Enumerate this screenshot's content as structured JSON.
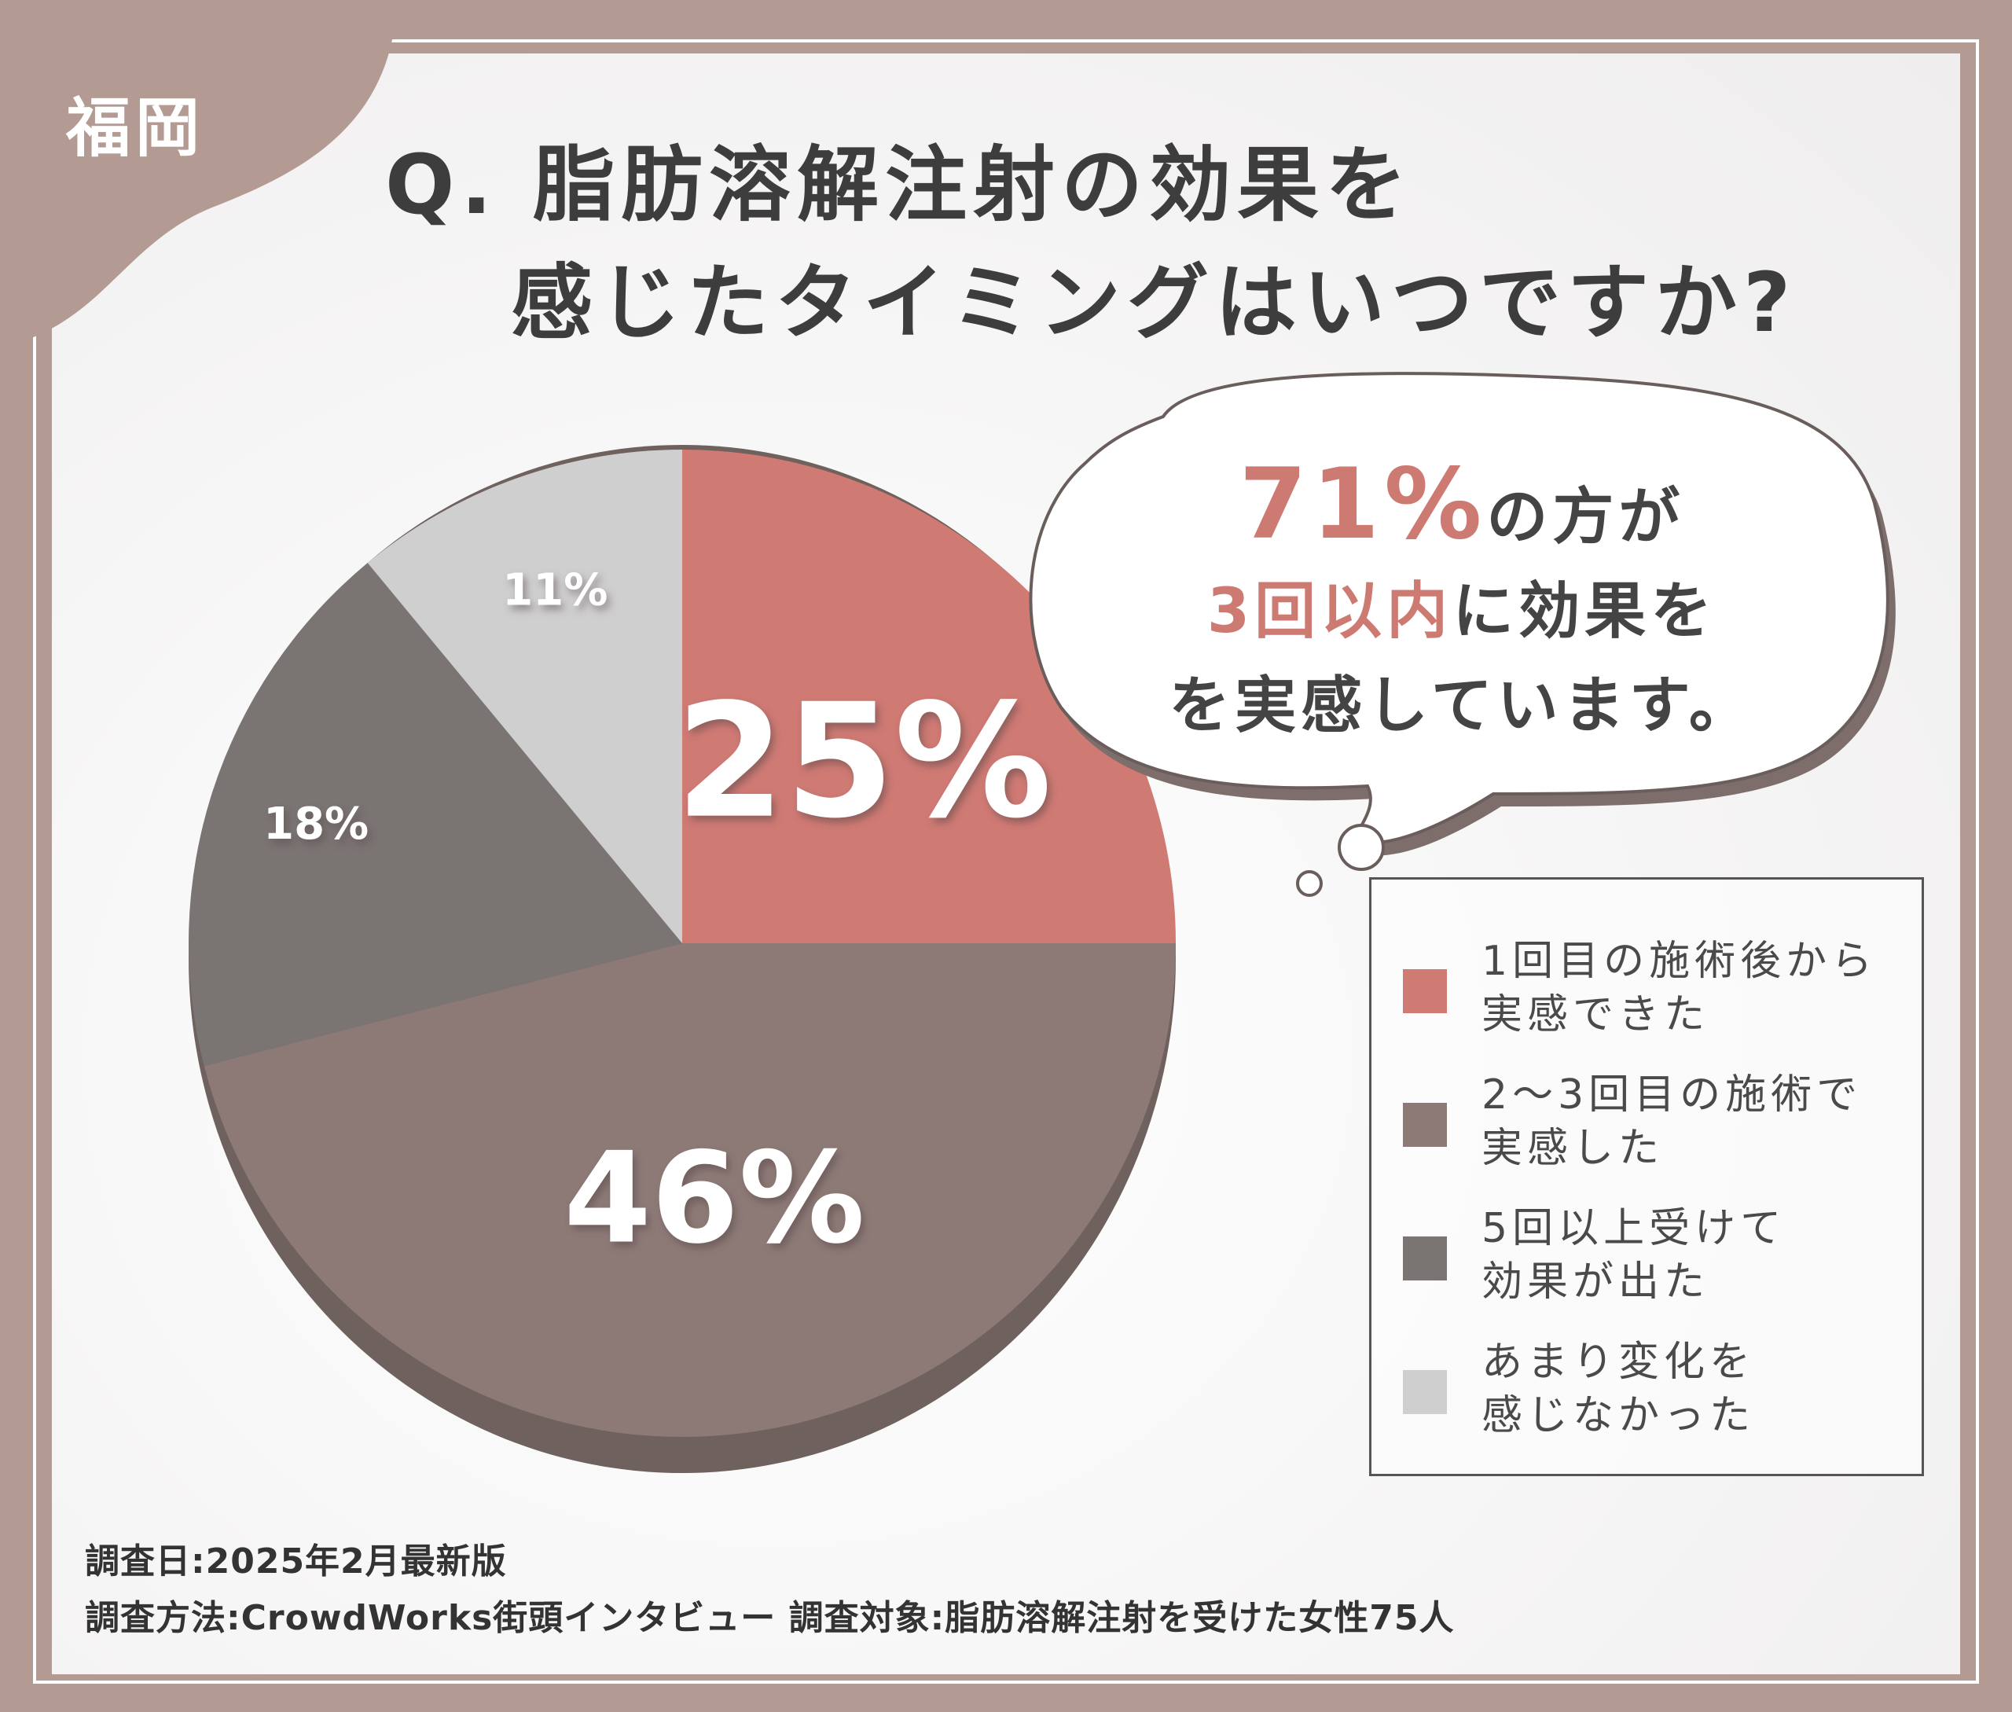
{
  "region": "福岡",
  "question": {
    "line1": "Q. 脂肪溶解注射の効果を",
    "line2": "感じたタイミングはいつですか?"
  },
  "bubble": {
    "percent": "71%",
    "line1_rest": "の方が",
    "highlight": "3回以内",
    "line2_rest": "に効果を",
    "line3": "を実感しています。"
  },
  "chart_data": {
    "type": "pie",
    "categories": [
      "1回目の施術後から実感できた",
      "2〜3回目の施術で実感した",
      "5回以上受けて効果が出た",
      "あまり変化を感じなかった"
    ],
    "values": [
      25,
      46,
      18,
      11
    ],
    "labels": [
      "25%",
      "46%",
      "18%",
      "11%"
    ],
    "colors": [
      "#d07a74",
      "#8d7a77",
      "#7a7473",
      "#cfcfcf"
    ],
    "legend_position": "right"
  },
  "legend": {
    "items": [
      {
        "line1": "1回目の施術後から",
        "line2": "実感できた",
        "color": "#d07a74"
      },
      {
        "line1": "2〜3回目の施術で",
        "line2": "実感した",
        "color": "#8d7a77"
      },
      {
        "line1": "5回以上受けて",
        "line2": "効果が出た",
        "color": "#7a7473"
      },
      {
        "line1": "あまり変化を",
        "line2": "感じなかった",
        "color": "#cfcfcf"
      }
    ]
  },
  "footer": {
    "line1": "調査日:2025年2月最新版",
    "line2": "調査方法:CrowdWorks街頭インタビュー 調査対象:脂肪溶解注射を受けた女性75人"
  }
}
